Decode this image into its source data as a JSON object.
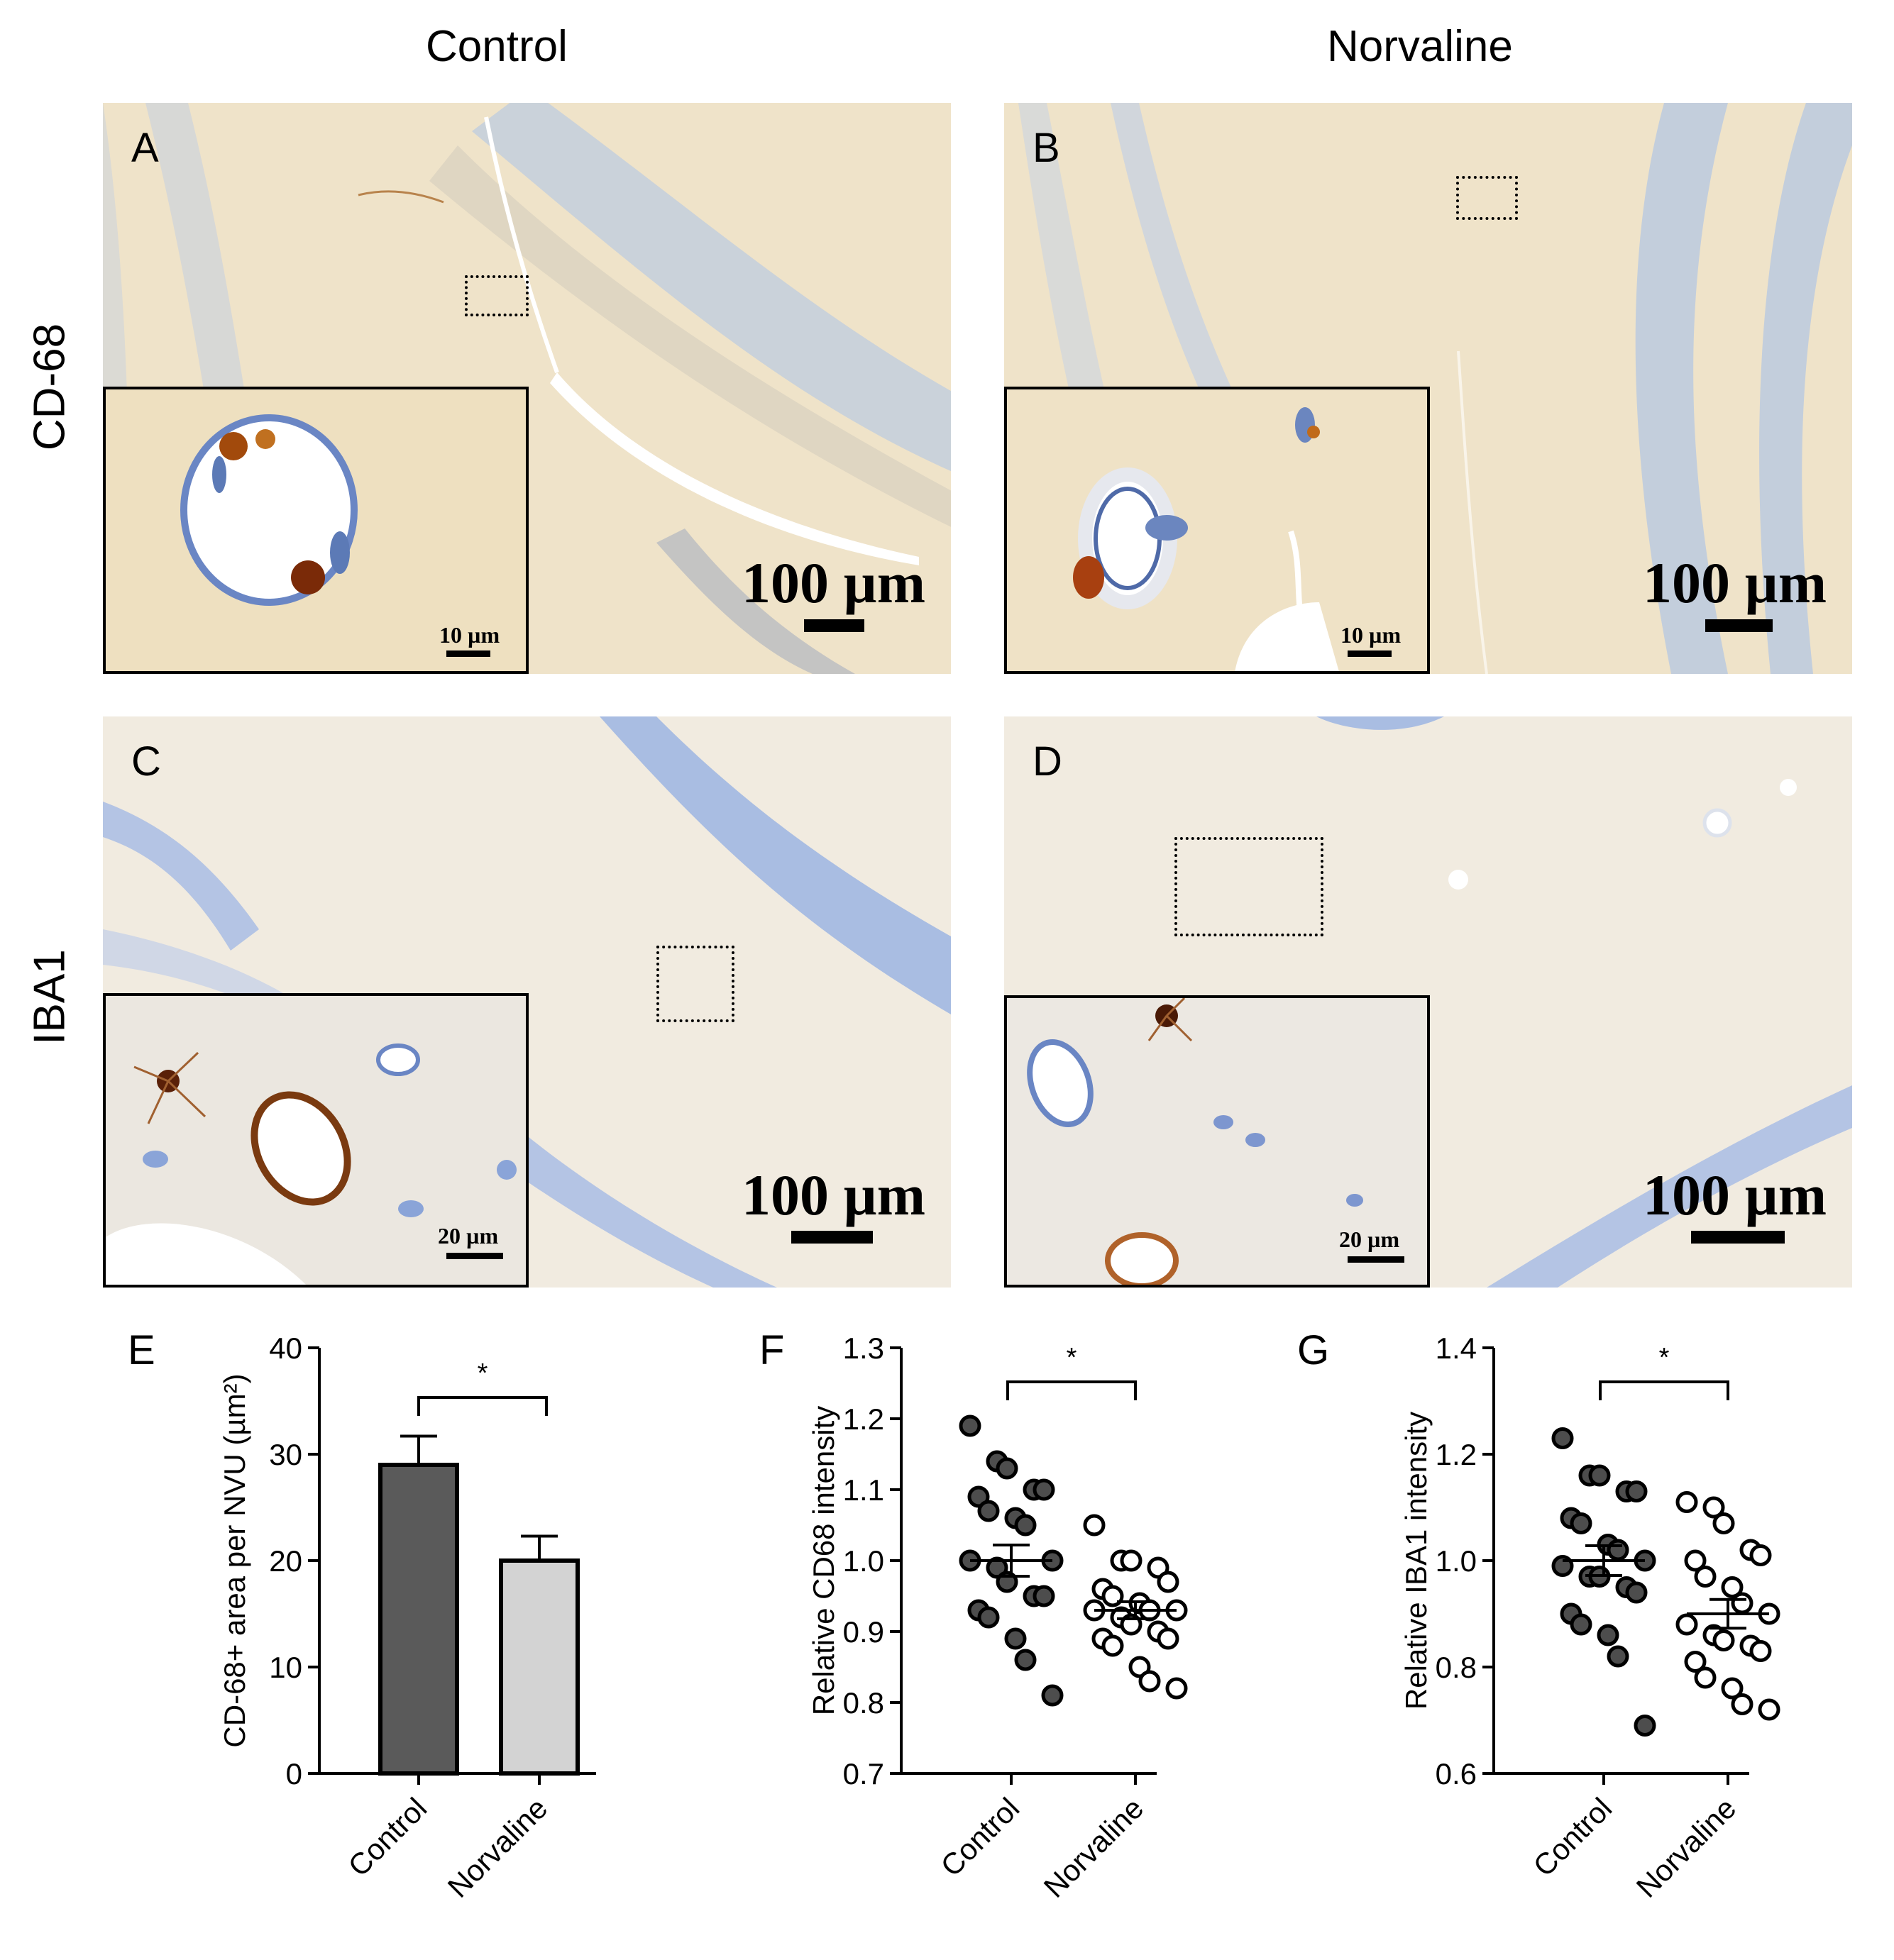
{
  "columns": [
    "Control",
    "Norvaline"
  ],
  "rows": [
    "CD-68",
    "IBA1"
  ],
  "panels": {
    "A": {
      "letter": "A",
      "scale_big": "100 µm",
      "scale_small": "10 µm"
    },
    "B": {
      "letter": "B",
      "scale_big": "100 µm",
      "scale_small": "10 µm"
    },
    "C": {
      "letter": "C",
      "scale_big": "100 µm",
      "scale_small": "20 µm"
    },
    "D": {
      "letter": "D",
      "scale_big": "100 µm",
      "scale_small": "20 µm"
    }
  },
  "colors": {
    "control_bar": "#5a5a5a",
    "norvaline_bar": "#d3d3d3",
    "control_dot": "#4d4d4d",
    "tissue_cd68": "#efe3c9",
    "tissue_iba1": "#f1ebe0",
    "nuclei": "#9fb2d6",
    "stain_brown": "#8a4a1c"
  },
  "chart_data": [
    {
      "letter": "E",
      "type": "bar",
      "categories": [
        "Control",
        "Norvaline"
      ],
      "values": [
        29,
        20
      ],
      "errors": [
        2.7,
        2.3
      ],
      "ylabel": "CD-68+ area per NVU (µm²)",
      "ylim": [
        0,
        40
      ],
      "yticks": [
        "0",
        "10",
        "20",
        "30",
        "40"
      ],
      "significance": "*"
    },
    {
      "letter": "F",
      "type": "scatter",
      "categories": [
        "Control",
        "Norvaline"
      ],
      "ylabel": "Relative CD68 intensity",
      "ylim": [
        0.7,
        1.3
      ],
      "yticks": [
        "0.7",
        "0.8",
        "0.9",
        "1.0",
        "1.1",
        "1.2",
        "1.3"
      ],
      "significance": "*",
      "series": [
        {
          "values": [
            1.19,
            1.14,
            1.13,
            1.1,
            1.1,
            1.09,
            1.07,
            1.06,
            1.05,
            1.0,
            1.0,
            0.99,
            0.97,
            0.95,
            0.95,
            0.93,
            0.92,
            0.89,
            0.86,
            0.81
          ],
          "mean": 1.0,
          "sem": 0.022
        },
        {
          "values": [
            1.05,
            1.0,
            1.0,
            0.99,
            0.97,
            0.96,
            0.95,
            0.94,
            0.93,
            0.93,
            0.93,
            0.92,
            0.91,
            0.9,
            0.89,
            0.89,
            0.88,
            0.85,
            0.83,
            0.82
          ],
          "mean": 0.93,
          "sem": 0.012
        }
      ]
    },
    {
      "letter": "G",
      "type": "scatter",
      "categories": [
        "Control",
        "Norvaline"
      ],
      "ylabel": "Relative IBA1 intensity",
      "ylim": [
        0.6,
        1.4
      ],
      "yticks": [
        "0.6",
        "0.8",
        "1.0",
        "1.2",
        "1.4"
      ],
      "significance": "*",
      "series": [
        {
          "values": [
            1.23,
            1.16,
            1.16,
            1.13,
            1.13,
            1.08,
            1.07,
            1.03,
            1.02,
            1.0,
            0.99,
            0.97,
            0.97,
            0.95,
            0.94,
            0.9,
            0.88,
            0.86,
            0.82,
            0.69
          ],
          "mean": 1.0,
          "sem": 0.028
        },
        {
          "values": [
            1.11,
            1.1,
            1.07,
            1.02,
            1.01,
            1.0,
            0.97,
            0.95,
            0.92,
            0.9,
            0.88,
            0.86,
            0.85,
            0.84,
            0.83,
            0.81,
            0.78,
            0.76,
            0.73,
            0.72
          ],
          "mean": 0.9,
          "sem": 0.027
        }
      ]
    }
  ]
}
